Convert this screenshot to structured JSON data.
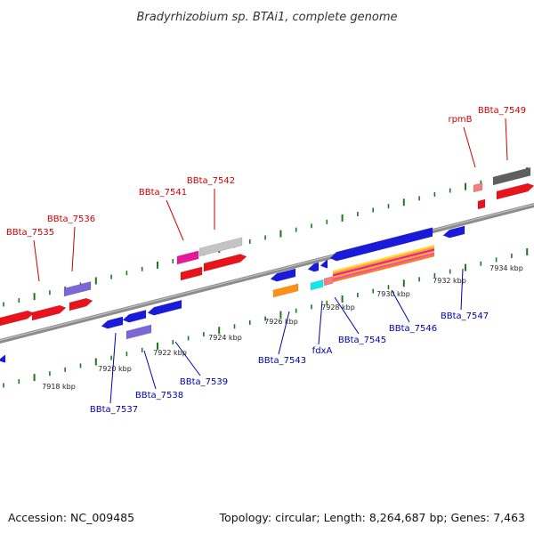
{
  "title": "Bradyrhizobium sp. BTAi1, complete genome",
  "footer": {
    "accession": "Accession: NC_009485",
    "summary": "Topology: circular; Length: 8,264,687 bp; Genes: 7,463"
  },
  "colors": {
    "backbone": "#8c8c8c",
    "tick": "#1a7a1a",
    "forward_label": "#cc0000",
    "reverse_label": "#0000aa"
  },
  "ticks": [
    {
      "label": "7918 kbp",
      "position_kbp": 7918
    },
    {
      "label": "7920 kbp",
      "position_kbp": 7920
    },
    {
      "label": "7922 kbp",
      "position_kbp": 7922
    },
    {
      "label": "7924 kbp",
      "position_kbp": 7924
    },
    {
      "label": "7926 kbp",
      "position_kbp": 7926
    },
    {
      "label": "7928 kbp",
      "position_kbp": 7928
    },
    {
      "label": "7930 kbp",
      "position_kbp": 7930
    },
    {
      "label": "7932 kbp",
      "position_kbp": 7932
    },
    {
      "label": "7934 kbp",
      "position_kbp": 7934
    }
  ],
  "forward_labels": [
    "BBta_7535",
    "BBta_7536",
    "BBta_7541",
    "BBta_7542",
    "rpmB",
    "BBta_7549"
  ],
  "reverse_labels": [
    "BBta_7537",
    "BBta_7538",
    "BBta_7539",
    "BBta_7543",
    "fdxA",
    "BBta_7545",
    "BBta_7546",
    "BBta_7547"
  ]
}
